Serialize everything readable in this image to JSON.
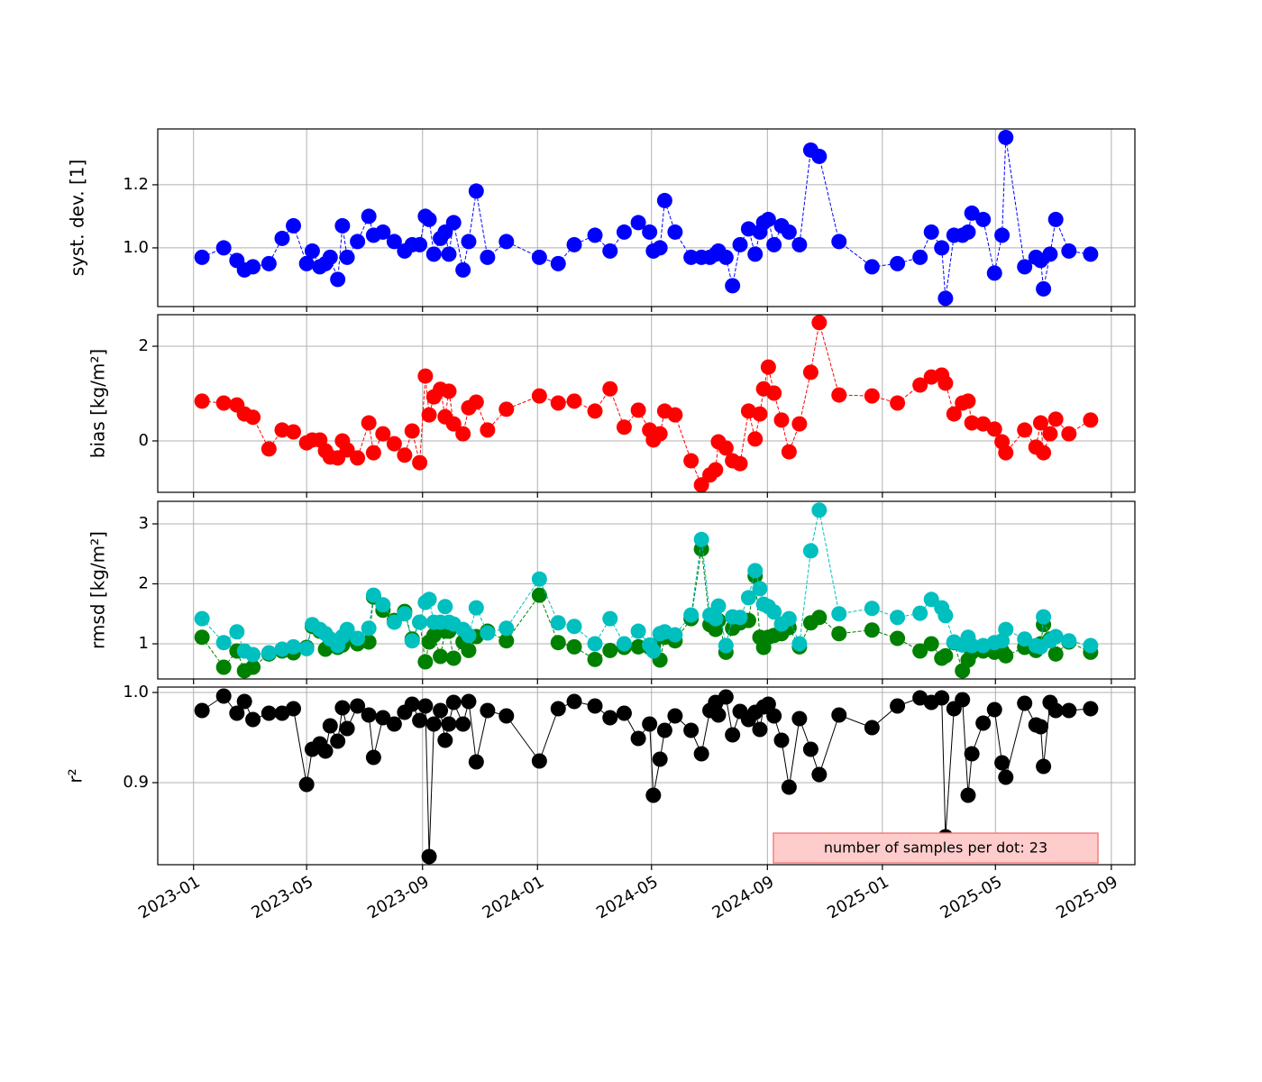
{
  "chart_data": {
    "type": "line",
    "x": [
      "2023-01-10",
      "2023-02-02",
      "2023-02-16",
      "2023-02-24",
      "2023-03-05",
      "2023-03-22",
      "2023-04-05",
      "2023-04-17",
      "2023-05-01",
      "2023-05-07",
      "2023-05-15",
      "2023-05-21",
      "2023-05-26",
      "2023-06-03",
      "2023-06-08",
      "2023-06-13",
      "2023-06-24",
      "2023-07-06",
      "2023-07-11",
      "2023-07-21",
      "2023-08-02",
      "2023-08-13",
      "2023-08-21",
      "2023-08-29",
      "2023-09-04",
      "2023-09-08",
      "2023-09-13",
      "2023-09-20",
      "2023-09-25",
      "2023-09-29",
      "2023-10-04",
      "2023-10-14",
      "2023-10-20",
      "2023-10-28",
      "2023-11-09",
      "2023-11-29",
      "2024-01-03",
      "2024-01-23",
      "2024-02-09",
      "2024-03-02",
      "2024-03-18",
      "2024-04-02",
      "2024-04-17",
      "2024-04-29",
      "2024-05-03",
      "2024-05-10",
      "2024-05-15",
      "2024-05-26",
      "2024-06-12",
      "2024-06-23",
      "2024-07-02",
      "2024-07-08",
      "2024-07-11",
      "2024-07-19",
      "2024-07-26",
      "2024-08-03",
      "2024-08-12",
      "2024-08-19",
      "2024-08-24",
      "2024-08-28",
      "2024-09-02",
      "2024-09-08",
      "2024-09-16",
      "2024-09-24",
      "2024-10-05",
      "2024-10-17",
      "2024-10-26",
      "2024-11-16",
      "2024-12-21",
      "2025-01-17",
      "2025-02-10",
      "2025-02-22",
      "2025-03-05",
      "2025-03-09",
      "2025-03-18",
      "2025-03-27",
      "2025-04-02",
      "2025-04-06",
      "2025-04-18",
      "2025-04-30",
      "2025-05-08",
      "2025-05-12",
      "2025-06-01",
      "2025-06-13",
      "2025-06-18",
      "2025-06-21",
      "2025-06-28",
      "2025-07-04",
      "2025-07-18",
      "2025-08-10"
    ],
    "xlim": [
      "2022-11-24",
      "2025-09-26"
    ],
    "xticks": [
      {
        "value": "2023-01-01",
        "label": "2023-01"
      },
      {
        "value": "2023-05-01",
        "label": "2023-05"
      },
      {
        "value": "2023-09-01",
        "label": "2023-09"
      },
      {
        "value": "2024-01-01",
        "label": "2024-01"
      },
      {
        "value": "2024-05-01",
        "label": "2024-05"
      },
      {
        "value": "2024-09-01",
        "label": "2024-09"
      },
      {
        "value": "2025-01-01",
        "label": "2025-01"
      },
      {
        "value": "2025-05-01",
        "label": "2025-05"
      },
      {
        "value": "2025-09-01",
        "label": "2025-09"
      }
    ],
    "grid": true,
    "annotation": "number of samples per dot: 23",
    "panels": [
      {
        "ylabel": "syst. dev. [1]",
        "ylim": [
          0.814,
          1.377
        ],
        "yticks": [
          {
            "value": 1,
            "label": "1.0"
          },
          {
            "value": 1.2,
            "label": "1.2"
          }
        ],
        "linestyle": "dashed",
        "series": [
          {
            "color": "#0000ff",
            "values": [
              0.97,
              1.0,
              0.96,
              0.93,
              0.94,
              0.95,
              1.03,
              1.07,
              0.95,
              0.99,
              0.94,
              0.95,
              0.97,
              0.9,
              1.07,
              0.97,
              1.02,
              1.1,
              1.04,
              1.05,
              1.02,
              0.99,
              1.01,
              1.01,
              1.1,
              1.09,
              0.98,
              1.03,
              1.05,
              0.98,
              1.08,
              0.93,
              1.02,
              1.18,
              0.97,
              1.02,
              0.97,
              0.95,
              1.01,
              1.04,
              0.99,
              1.05,
              1.08,
              1.05,
              0.99,
              1.0,
              1.15,
              1.05,
              0.97,
              0.97,
              0.97,
              0.98,
              0.99,
              0.97,
              0.88,
              1.01,
              1.06,
              0.98,
              1.05,
              1.08,
              1.09,
              1.01,
              1.07,
              1.05,
              1.01,
              1.31,
              1.29,
              1.02,
              0.94,
              0.95,
              0.97,
              1.05,
              1.0,
              0.84,
              1.04,
              1.04,
              1.05,
              1.11,
              1.09,
              0.92,
              1.04,
              1.35,
              0.94,
              0.97,
              0.96,
              0.87,
              0.98,
              1.09,
              0.99,
              0.98
            ]
          }
        ]
      },
      {
        "ylabel": "bias [kg/m²]",
        "ylim": [
          -1.086,
          2.667
        ],
        "yticks": [
          0,
          2
        ],
        "linestyle": "dashed",
        "series": [
          {
            "color": "#ff0000",
            "values": [
              0.84,
              0.8,
              0.76,
              0.57,
              0.5,
              -0.17,
              0.23,
              0.19,
              -0.04,
              0.02,
              0.02,
              -0.21,
              -0.34,
              -0.36,
              0.0,
              -0.19,
              -0.36,
              0.38,
              -0.25,
              0.15,
              -0.06,
              -0.3,
              0.21,
              -0.46,
              1.37,
              0.55,
              0.93,
              1.09,
              0.51,
              1.05,
              0.36,
              0.15,
              0.7,
              0.82,
              0.23,
              0.67,
              0.95,
              0.8,
              0.84,
              0.63,
              1.1,
              0.29,
              0.65,
              0.23,
              0.02,
              0.15,
              0.63,
              0.55,
              -0.42,
              -0.93,
              -0.72,
              -0.61,
              -0.02,
              -0.15,
              -0.42,
              -0.48,
              0.63,
              0.04,
              0.57,
              1.1,
              1.56,
              1.01,
              0.44,
              -0.23,
              0.36,
              1.45,
              2.5,
              0.97,
              0.95,
              0.8,
              1.18,
              1.35,
              1.39,
              1.22,
              0.57,
              0.8,
              0.84,
              0.38,
              0.36,
              0.25,
              -0.02,
              -0.25,
              0.23,
              -0.13,
              0.38,
              -0.25,
              0.15,
              0.46,
              0.15,
              0.44
            ]
          }
        ]
      },
      {
        "ylabel": "rmsd [kg/m²]",
        "ylim": [
          0.414,
          3.376
        ],
        "yticks": [
          1,
          2,
          3
        ],
        "linestyle": "dashed",
        "series": [
          {
            "color": "#008000",
            "values": [
              1.11,
              0.61,
              0.88,
              0.55,
              0.61,
              0.83,
              0.88,
              0.85,
              0.94,
              1.29,
              1.21,
              0.91,
              1.0,
              0.94,
              0.98,
              1.12,
              1.0,
              1.03,
              1.78,
              1.56,
              1.39,
              1.54,
              1.08,
              1.36,
              0.7,
              1.03,
              1.14,
              0.79,
              1.21,
              1.21,
              0.76,
              1.03,
              0.89,
              1.12,
              1.21,
              1.05,
              1.81,
              1.02,
              0.95,
              0.74,
              0.89,
              0.94,
              0.95,
              0.94,
              0.97,
              0.73,
              1.11,
              1.05,
              1.42,
              2.58,
              1.32,
              1.24,
              1.39,
              0.86,
              1.26,
              1.35,
              1.39,
              2.13,
              1.11,
              0.94,
              1.11,
              1.14,
              1.17,
              1.27,
              0.95,
              1.35,
              1.44,
              1.17,
              1.23,
              1.09,
              0.88,
              1.0,
              0.76,
              0.8,
              1.02,
              0.55,
              0.73,
              0.86,
              0.88,
              0.86,
              0.88,
              0.8,
              0.94,
              0.89,
              1.0,
              1.32,
              1.08,
              0.83,
              1.03,
              0.86
            ]
          },
          {
            "color": "#00bfbf",
            "values": [
              1.42,
              1.02,
              1.2,
              0.88,
              0.82,
              0.85,
              0.91,
              0.95,
              0.92,
              1.32,
              1.24,
              1.17,
              1.08,
              0.97,
              1.12,
              1.24,
              1.09,
              1.26,
              1.81,
              1.65,
              1.36,
              1.5,
              1.05,
              1.36,
              1.69,
              1.74,
              1.36,
              1.36,
              1.62,
              1.36,
              1.33,
              1.24,
              1.14,
              1.6,
              1.18,
              1.26,
              2.08,
              1.35,
              1.29,
              1.0,
              1.42,
              1.0,
              1.21,
              0.98,
              0.88,
              1.17,
              1.2,
              1.15,
              1.48,
              2.74,
              1.48,
              1.42,
              1.63,
              0.97,
              1.45,
              1.44,
              1.77,
              2.22,
              1.92,
              1.66,
              1.62,
              1.53,
              1.33,
              1.42,
              1.0,
              2.55,
              3.23,
              1.5,
              1.59,
              1.44,
              1.51,
              1.74,
              1.6,
              1.47,
              1.03,
              0.98,
              1.11,
              0.97,
              0.97,
              1.02,
              1.05,
              1.24,
              1.08,
              0.97,
              0.95,
              1.45,
              1.05,
              1.12,
              1.05,
              0.97
            ]
          }
        ]
      },
      {
        "ylabel": "r²",
        "ylim": [
          0.809,
          1.006
        ],
        "yticks": [
          {
            "value": 0.9,
            "label": "0.9"
          },
          {
            "value": 1,
            "label": "1.0"
          }
        ],
        "linestyle": "solid",
        "series": [
          {
            "color": "#000000",
            "values": [
              0.98,
              0.996,
              0.977,
              0.99,
              0.97,
              0.977,
              0.977,
              0.982,
              0.898,
              0.937,
              0.943,
              0.935,
              0.963,
              0.946,
              0.983,
              0.96,
              0.985,
              0.975,
              0.928,
              0.972,
              0.965,
              0.978,
              0.987,
              0.969,
              0.985,
              0.818,
              0.965,
              0.98,
              0.947,
              0.965,
              0.989,
              0.965,
              0.99,
              0.923,
              0.98,
              0.974,
              0.924,
              0.982,
              0.99,
              0.985,
              0.972,
              0.977,
              0.949,
              0.965,
              0.886,
              0.926,
              0.958,
              0.974,
              0.958,
              0.932,
              0.98,
              0.989,
              0.975,
              0.995,
              0.953,
              0.979,
              0.97,
              0.978,
              0.959,
              0.984,
              0.987,
              0.974,
              0.947,
              0.895,
              0.971,
              0.937,
              0.909,
              0.975,
              0.961,
              0.985,
              0.994,
              0.989,
              0.994,
              0.84,
              0.982,
              0.992,
              0.886,
              0.932,
              0.966,
              0.981,
              0.922,
              0.906,
              0.988,
              0.964,
              0.962,
              0.918,
              0.989,
              0.98,
              0.98,
              0.982
            ]
          }
        ]
      }
    ]
  }
}
